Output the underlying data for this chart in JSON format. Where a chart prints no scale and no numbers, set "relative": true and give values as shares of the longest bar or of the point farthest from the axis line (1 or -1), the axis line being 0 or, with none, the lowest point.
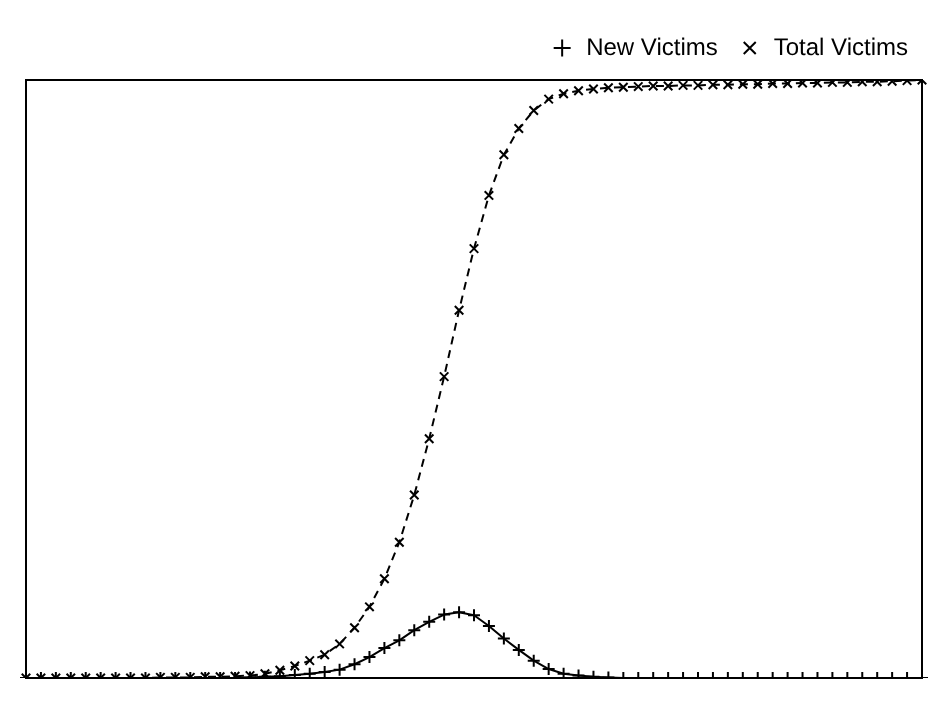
{
  "chart_data": {
    "type": "line",
    "relative": true,
    "legend": "top right",
    "grid": false,
    "categories": [
      null,
      null,
      null,
      null,
      null,
      null,
      null,
      null,
      null,
      null,
      null,
      null,
      null,
      null,
      null,
      null,
      null,
      null,
      null,
      null,
      null,
      null,
      null,
      null,
      null,
      null,
      null,
      null,
      null,
      null,
      null,
      null,
      null,
      null,
      null,
      null,
      null,
      null,
      null,
      null,
      null,
      null,
      null,
      null,
      null,
      null,
      null,
      null,
      null,
      null,
      null,
      null,
      null,
      null,
      null,
      null,
      null,
      null,
      null,
      null,
      null
    ],
    "series": [
      {
        "name": "New Victims",
        "color": "#000000",
        "marker": "cross",
        "line_style": "solid",
        "values": [
          0,
          0,
          0,
          0,
          0,
          0,
          0,
          0,
          0,
          0,
          0,
          0,
          0,
          0,
          0,
          0.001,
          0.002,
          0.003,
          0.005,
          0.007,
          0.01,
          0.014,
          0.023,
          0.035,
          0.05,
          0.063,
          0.08,
          0.094,
          0.106,
          0.11,
          0.105,
          0.087,
          0.066,
          0.047,
          0.029,
          0.015,
          0.007,
          0.004,
          0.002,
          0.001,
          0,
          0,
          0,
          0,
          0,
          0,
          0,
          0,
          0,
          0,
          0,
          0,
          0,
          0,
          0,
          0,
          0,
          0,
          0,
          0,
          0
        ]
      },
      {
        "name": "Total Victims",
        "color": "#000000",
        "marker": "x",
        "line_style": "dashed",
        "values": [
          0,
          0,
          0,
          0,
          0,
          0,
          0,
          0,
          0,
          0.001,
          0.001,
          0.001,
          0.002,
          0.002,
          0.003,
          0.004,
          0.007,
          0.013,
          0.02,
          0.029,
          0.039,
          0.057,
          0.084,
          0.119,
          0.166,
          0.227,
          0.306,
          0.4,
          0.504,
          0.615,
          0.718,
          0.807,
          0.875,
          0.919,
          0.949,
          0.968,
          0.977,
          0.982,
          0.985,
          0.987,
          0.988,
          0.989,
          0.99,
          0.99,
          0.991,
          0.991,
          0.992,
          0.992,
          0.993,
          0.993,
          0.994,
          0.994,
          0.995,
          0.995,
          0.996,
          0.996,
          0.997,
          0.997,
          0.998,
          0.999,
          1
        ]
      }
    ]
  }
}
